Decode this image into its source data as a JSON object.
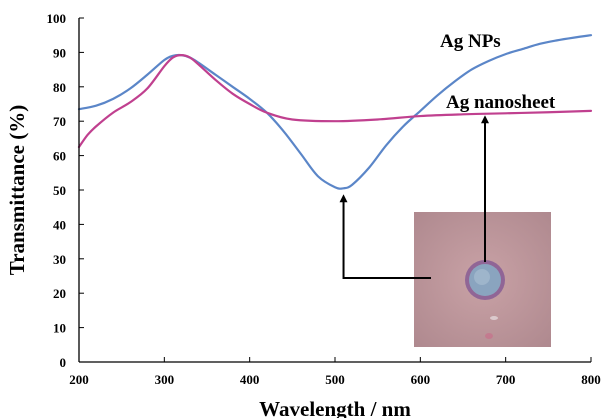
{
  "chart_data": {
    "type": "line",
    "title": "",
    "xlabel": "Wavelength / nm",
    "ylabel": "Transmittance (%)",
    "xlim": [
      200,
      800
    ],
    "ylim": [
      0,
      100
    ],
    "xticks": [
      200,
      300,
      400,
      500,
      600,
      700,
      800
    ],
    "yticks": [
      0,
      10,
      20,
      30,
      40,
      50,
      60,
      70,
      80,
      90,
      100
    ],
    "grid": false,
    "series": [
      {
        "name": "Ag NPs",
        "color": "#5b86c8",
        "x": [
          200,
          220,
          240,
          260,
          280,
          300,
          310,
          320,
          330,
          340,
          360,
          380,
          400,
          420,
          440,
          460,
          480,
          500,
          510,
          520,
          540,
          560,
          580,
          600,
          620,
          640,
          660,
          680,
          700,
          720,
          740,
          760,
          780,
          800
        ],
        "y": [
          73.5,
          74.5,
          76.5,
          79.5,
          83.5,
          87.8,
          89,
          89.2,
          88.5,
          87,
          83.5,
          80,
          76.5,
          72.5,
          67,
          60.5,
          54,
          50.8,
          50.5,
          51.5,
          56.5,
          63,
          68.5,
          73,
          77.5,
          81.5,
          85,
          87.5,
          89.5,
          91,
          92.5,
          93.5,
          94.3,
          95
        ]
      },
      {
        "name": "Ag nanosheet",
        "color": "#c0408f",
        "x": [
          200,
          210,
          220,
          240,
          260,
          280,
          300,
          310,
          320,
          330,
          340,
          360,
          380,
          400,
          420,
          450,
          500,
          550,
          600,
          650,
          700,
          750,
          800
        ],
        "y": [
          62.5,
          66,
          68.5,
          72.5,
          75.5,
          79.5,
          86,
          88.5,
          89.2,
          88.5,
          86.5,
          82,
          78,
          75,
          72.5,
          70.5,
          70,
          70.5,
          71.5,
          72,
          72.3,
          72.6,
          73
        ]
      }
    ],
    "annotations": [
      {
        "text": "Ag NPs"
      },
      {
        "text": "Ag nanosheet"
      }
    ],
    "inset": {
      "kind": "photograph",
      "description_visible": "pink substrate with a blue-circled spot"
    }
  }
}
